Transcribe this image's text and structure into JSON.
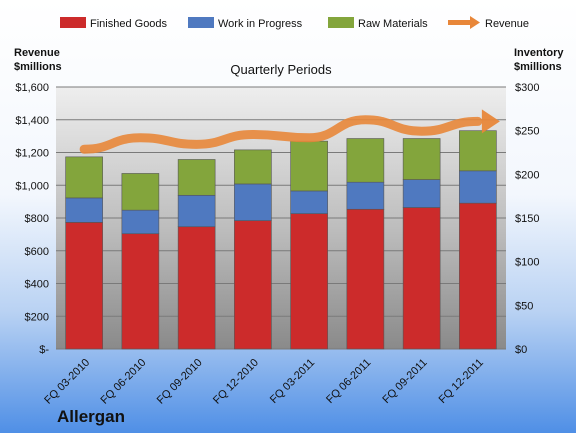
{
  "company": "Allergan",
  "colors": {
    "finished_goods": "#cc2b2b",
    "work_in_progress": "#4f79c0",
    "raw_materials": "#83a53c",
    "revenue": "#e8873a"
  },
  "chart_data": {
    "type": "bar",
    "stacked": true,
    "title": "Quarterly Periods",
    "left_axis_title": [
      "Revenue",
      "$millions"
    ],
    "right_axis_title": [
      "Inventory",
      "$millions"
    ],
    "categories": [
      "FQ 03-2010",
      "FQ 06-2010",
      "FQ 09-2010",
      "FQ 12-2010",
      "FQ 03-2011",
      "FQ 06-2011",
      "FQ 09-2011",
      "FQ 12-2011"
    ],
    "series": [
      {
        "name": "Finished Goods",
        "axis": "right",
        "values": [
          145,
          132,
          140,
          147,
          155,
          160,
          162,
          167
        ]
      },
      {
        "name": "Work in Progress",
        "axis": "right",
        "values": [
          28,
          27,
          36,
          42,
          26,
          31,
          32,
          37
        ]
      },
      {
        "name": "Raw Materials",
        "axis": "right",
        "values": [
          47,
          42,
          41,
          39,
          57,
          50,
          47,
          46
        ]
      },
      {
        "name": "Revenue",
        "type": "line",
        "axis": "left",
        "values": [
          1220,
          1290,
          1250,
          1310,
          1290,
          1400,
          1330,
          1390
        ]
      }
    ],
    "left_ylim": [
      0,
      1600
    ],
    "left_ticks": [
      "$-",
      "$200",
      "$400",
      "$600",
      "$800",
      "$1,000",
      "$1,200",
      "$1,400",
      "$1,600"
    ],
    "right_ylim": [
      0,
      300
    ],
    "right_ticks": [
      "$0",
      "$50",
      "$100",
      "$150",
      "$200",
      "$250",
      "$300"
    ],
    "grid": true,
    "legend_position": "top"
  }
}
